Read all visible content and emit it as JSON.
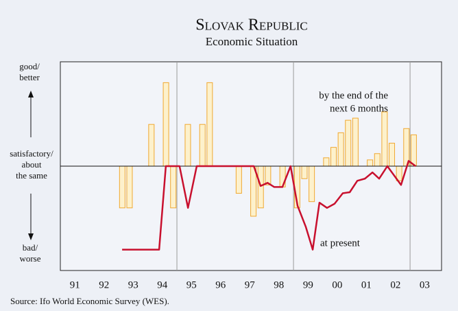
{
  "chart_data": {
    "type": "combo",
    "title": "Slovak Republic",
    "subtitle": "Economic Situation",
    "y_labels": {
      "top": [
        "good/",
        "better"
      ],
      "middle": [
        "satisfactory/",
        "about",
        "the same"
      ],
      "bottom": [
        "bad/",
        "worse"
      ]
    },
    "annotations": {
      "expectations": [
        "by the end of the",
        "next 6 months"
      ],
      "present": "at present"
    },
    "source": "Source: Ifo World Economic Survey (WES).",
    "xlim": [
      1991,
      2004.08
    ],
    "ylim": [
      -5,
      5
    ],
    "xticks": [
      {
        "value": 1991.5,
        "label": "91"
      },
      {
        "value": 1992.5,
        "label": "92"
      },
      {
        "value": 1993.5,
        "label": "93"
      },
      {
        "value": 1994.5,
        "label": "94"
      },
      {
        "value": 1995.5,
        "label": "95"
      },
      {
        "value": 1996.5,
        "label": "96"
      },
      {
        "value": 1997.5,
        "label": "97"
      },
      {
        "value": 1998.5,
        "label": "98"
      },
      {
        "value": 1999.5,
        "label": "99"
      },
      {
        "value": 2000.5,
        "label": "00"
      },
      {
        "value": 2001.5,
        "label": "01"
      },
      {
        "value": 2002.5,
        "label": "02"
      },
      {
        "value": 2003.5,
        "label": "03"
      }
    ],
    "vlines": [
      1995,
      1999,
      2003
    ],
    "series": [
      {
        "name": "by the end of the next 6 months",
        "type": "bar",
        "color": "#fdf1cc",
        "edge": "#f0a830",
        "x": [
          1993.125,
          1993.375,
          1994.125,
          1994.625,
          1994.875,
          1995.375,
          1995.875,
          1996.125,
          1997.125,
          1997.625,
          1997.875,
          1998.125,
          1998.625,
          1999.125,
          1999.375,
          1999.625,
          2000.125,
          2000.375,
          2000.625,
          2000.875,
          2001.125,
          2001.625,
          2001.875,
          2002.125,
          2002.375,
          2002.625,
          2002.875,
          2003.125
        ],
        "values": [
          -2,
          -2,
          2,
          4,
          -2,
          2,
          2,
          4,
          -1.3,
          -2.4,
          -2,
          -0.9,
          -1,
          -2,
          -0.6,
          -1.7,
          0.4,
          0.9,
          1.6,
          2.2,
          2.3,
          0.3,
          0.6,
          2.6,
          1.1,
          -0.7,
          1.8,
          1.5
        ]
      },
      {
        "name": "at present",
        "type": "line",
        "color": "#c8102e",
        "x": [
          1993.12,
          1994.39,
          1994.62,
          1995.09,
          1995.38,
          1995.68,
          1997.64,
          1997.87,
          1998.11,
          1998.34,
          1998.62,
          1998.9,
          1999.14,
          1999.42,
          1999.66,
          1999.89,
          2000.15,
          2000.41,
          2000.69,
          2000.93,
          2001.19,
          2001.45,
          2001.71,
          2001.94,
          2002.22,
          2002.69,
          2002.95,
          2003.19
        ],
        "values": [
          -4,
          -4,
          0,
          0,
          -2,
          0,
          0,
          -0.95,
          -0.8,
          -1,
          -1,
          0,
          -1.9,
          -2.9,
          -4,
          -1.75,
          -2,
          -1.8,
          -1.3,
          -1.25,
          -0.7,
          -0.6,
          -0.3,
          -0.6,
          0,
          -0.9,
          0.25,
          0
        ]
      }
    ]
  }
}
